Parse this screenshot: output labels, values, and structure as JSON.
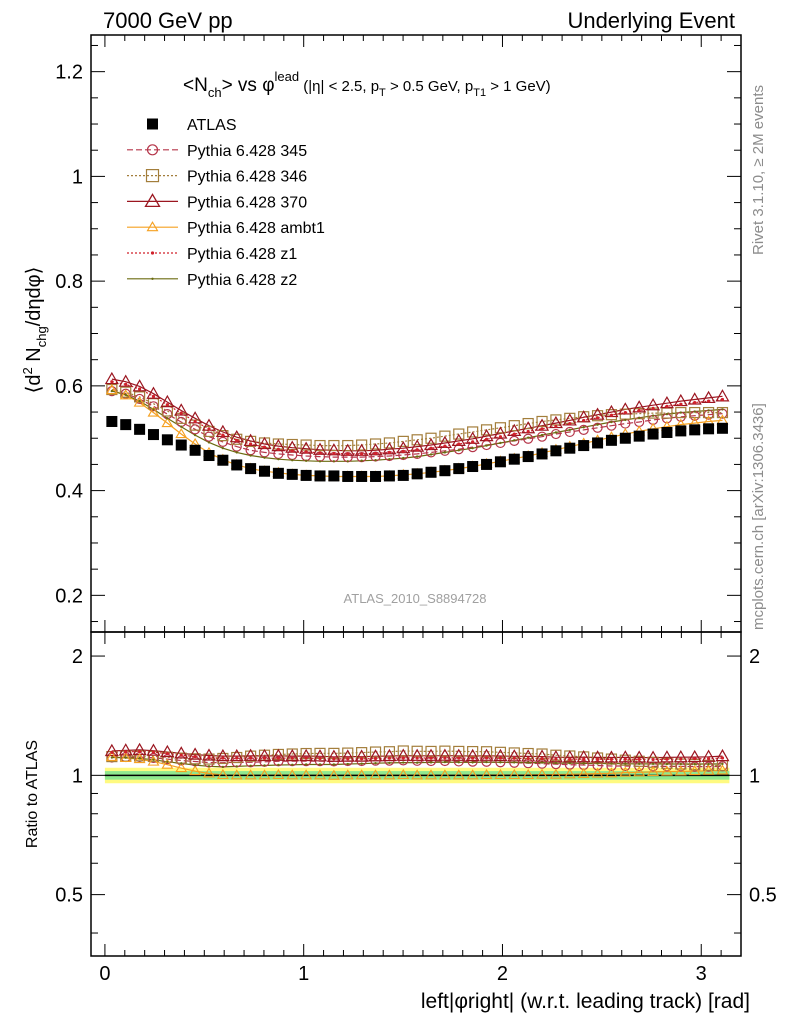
{
  "header": {
    "left": "7000 GeV pp",
    "right": "Underlying Event"
  },
  "side_labels": {
    "top": "Rivet 3.1.10, ≥ 2M events",
    "bottom": "mcplots.cern.ch [arXiv:1306.3436]"
  },
  "watermark": "ATLAS_2010_S8894728",
  "colors": {
    "atlas": "#000000",
    "p345": "#b5364a",
    "p346": "#a37e3b",
    "p370": "#9b1620",
    "ambt1": "#f5a020",
    "z1": "#d0212b",
    "z2": "#6b6b10",
    "band_yellow": "#fffa80",
    "band_green": "#8fe88f"
  },
  "chart_data": {
    "type": "scatter",
    "title_parts": {
      "a": "<N",
      "a_sub": "ch",
      "b": "> vs φ",
      "b_sup": "lead",
      "c": " (|η| < 2.5, p",
      "c_sub": "T",
      "d": " > 0.5 GeV, p",
      "d_sub": "T1",
      "e": " > 1 GeV)"
    },
    "ylabel_main": {
      "a": "⟨d",
      "sup": "2",
      "b": " N",
      "sub": "chg",
      "c": "/dηdφ⟩"
    },
    "ylabel_ratio": "Ratio to ATLAS",
    "xlabel": "left|φright| (w.r.t. leading track) [rad]",
    "xlim": [
      -0.07,
      3.2
    ],
    "ylim_main": [
      0.13,
      1.27
    ],
    "ylim_ratio": [
      0.35,
      2.3
    ],
    "x_ticks": [
      "0",
      "1",
      "2",
      "3"
    ],
    "y_ticks_main": [
      "0.2",
      "0.4",
      "0.6",
      "0.8",
      "1",
      "1.2"
    ],
    "y_ticks_ratio": [
      "0.5",
      "1",
      "2"
    ],
    "legend_position": "top-left",
    "x": [
      0.0349,
      0.1047,
      0.1745,
      0.2443,
      0.3142,
      0.384,
      0.4538,
      0.5236,
      0.5934,
      0.6632,
      0.733,
      0.8029,
      0.8727,
      0.9425,
      1.0123,
      1.0821,
      1.1519,
      1.2217,
      1.2915,
      1.3614,
      1.4312,
      1.501,
      1.5708,
      1.6406,
      1.7104,
      1.7802,
      1.85,
      1.9199,
      1.9897,
      2.0595,
      2.1293,
      2.1991,
      2.2689,
      2.3387,
      2.4086,
      2.4784,
      2.5482,
      2.618,
      2.6878,
      2.7576,
      2.8274,
      2.8972,
      2.9671,
      3.0369,
      3.1067
    ],
    "series": [
      {
        "name": "ATLAS",
        "key": "atlas",
        "marker": "filled-square",
        "line": "none",
        "values": [
          0.532,
          0.526,
          0.517,
          0.507,
          0.497,
          0.487,
          0.477,
          0.467,
          0.458,
          0.449,
          0.442,
          0.437,
          0.433,
          0.431,
          0.429,
          0.428,
          0.428,
          0.427,
          0.427,
          0.427,
          0.428,
          0.429,
          0.432,
          0.435,
          0.438,
          0.442,
          0.446,
          0.45,
          0.455,
          0.46,
          0.465,
          0.47,
          0.476,
          0.481,
          0.486,
          0.491,
          0.496,
          0.5,
          0.504,
          0.508,
          0.511,
          0.514,
          0.516,
          0.518,
          0.519
        ],
        "ratio": [
          1,
          1,
          1,
          1,
          1,
          1,
          1,
          1,
          1,
          1,
          1,
          1,
          1,
          1,
          1,
          1,
          1,
          1,
          1,
          1,
          1,
          1,
          1,
          1,
          1,
          1,
          1,
          1,
          1,
          1,
          1,
          1,
          1,
          1,
          1,
          1,
          1,
          1,
          1,
          1,
          1,
          1,
          1,
          1,
          1
        ]
      },
      {
        "name": "Pythia 6.428 345",
        "key": "p345",
        "marker": "open-circle",
        "line": "dashed",
        "values": [
          0.59,
          0.585,
          0.575,
          0.561,
          0.546,
          0.531,
          0.517,
          0.503,
          0.493,
          0.484,
          0.477,
          0.473,
          0.47,
          0.468,
          0.466,
          0.465,
          0.464,
          0.464,
          0.464,
          0.465,
          0.466,
          0.468,
          0.47,
          0.473,
          0.476,
          0.479,
          0.483,
          0.487,
          0.491,
          0.495,
          0.499,
          0.503,
          0.508,
          0.512,
          0.516,
          0.52,
          0.524,
          0.528,
          0.531,
          0.535,
          0.538,
          0.541,
          0.543,
          0.545,
          0.547
        ],
        "ratio": [
          1.109,
          1.112,
          1.112,
          1.107,
          1.099,
          1.09,
          1.084,
          1.077,
          1.076,
          1.078,
          1.079,
          1.082,
          1.085,
          1.086,
          1.086,
          1.086,
          1.084,
          1.087,
          1.087,
          1.089,
          1.089,
          1.091,
          1.088,
          1.087,
          1.087,
          1.084,
          1.083,
          1.082,
          1.079,
          1.076,
          1.073,
          1.07,
          1.067,
          1.064,
          1.062,
          1.059,
          1.056,
          1.056,
          1.054,
          1.053,
          1.053,
          1.053,
          1.052,
          1.052,
          1.054
        ]
      },
      {
        "name": "Pythia 6.428 346",
        "key": "p346",
        "marker": "open-square",
        "line": "dotted",
        "values": [
          0.593,
          0.588,
          0.579,
          0.566,
          0.552,
          0.538,
          0.525,
          0.513,
          0.505,
          0.498,
          0.494,
          0.491,
          0.489,
          0.488,
          0.487,
          0.486,
          0.486,
          0.486,
          0.487,
          0.489,
          0.491,
          0.494,
          0.497,
          0.5,
          0.504,
          0.508,
          0.512,
          0.516,
          0.52,
          0.524,
          0.528,
          0.532,
          0.535,
          0.538,
          0.541,
          0.543,
          0.545,
          0.546,
          0.547,
          0.548,
          0.548,
          0.549,
          0.549,
          0.549,
          0.549
        ],
        "ratio": [
          1.115,
          1.118,
          1.12,
          1.116,
          1.111,
          1.105,
          1.101,
          1.099,
          1.103,
          1.109,
          1.118,
          1.124,
          1.129,
          1.132,
          1.135,
          1.136,
          1.136,
          1.138,
          1.141,
          1.145,
          1.147,
          1.152,
          1.15,
          1.149,
          1.151,
          1.149,
          1.148,
          1.147,
          1.143,
          1.139,
          1.135,
          1.132,
          1.124,
          1.119,
          1.113,
          1.106,
          1.099,
          1.092,
          1.085,
          1.079,
          1.072,
          1.068,
          1.064,
          1.06,
          1.058
        ]
      },
      {
        "name": "Pythia 6.428 370",
        "key": "p370",
        "marker": "open-triangle",
        "line": "solid",
        "values": [
          0.613,
          0.608,
          0.599,
          0.585,
          0.569,
          0.553,
          0.538,
          0.524,
          0.512,
          0.502,
          0.495,
          0.489,
          0.485,
          0.482,
          0.48,
          0.478,
          0.477,
          0.476,
          0.476,
          0.477,
          0.479,
          0.481,
          0.484,
          0.487,
          0.491,
          0.495,
          0.499,
          0.504,
          0.509,
          0.514,
          0.519,
          0.524,
          0.529,
          0.534,
          0.54,
          0.545,
          0.55,
          0.555,
          0.559,
          0.563,
          0.567,
          0.571,
          0.574,
          0.577,
          0.58
        ],
        "ratio": [
          1.152,
          1.156,
          1.159,
          1.154,
          1.145,
          1.136,
          1.128,
          1.122,
          1.118,
          1.118,
          1.12,
          1.119,
          1.12,
          1.118,
          1.119,
          1.117,
          1.114,
          1.115,
          1.115,
          1.117,
          1.119,
          1.121,
          1.12,
          1.12,
          1.121,
          1.12,
          1.119,
          1.12,
          1.119,
          1.117,
          1.116,
          1.115,
          1.111,
          1.11,
          1.111,
          1.11,
          1.109,
          1.11,
          1.109,
          1.108,
          1.11,
          1.111,
          1.112,
          1.114,
          1.118
        ]
      },
      {
        "name": "Pythia 6.428 ambt1",
        "key": "ambt1",
        "marker": "open-triangle-small",
        "line": "solid",
        "values": [
          0.592,
          0.582,
          0.568,
          0.549,
          0.529,
          0.508,
          0.489,
          0.472,
          0.459,
          0.449,
          0.442,
          0.437,
          0.434,
          0.431,
          0.429,
          0.428,
          0.427,
          0.427,
          0.427,
          0.427,
          0.428,
          0.43,
          0.432,
          0.435,
          0.438,
          0.442,
          0.446,
          0.451,
          0.456,
          0.461,
          0.466,
          0.472,
          0.478,
          0.484,
          0.49,
          0.496,
          0.502,
          0.508,
          0.513,
          0.518,
          0.522,
          0.526,
          0.529,
          0.532,
          0.534
        ],
        "ratio": [
          1.113,
          1.106,
          1.099,
          1.083,
          1.064,
          1.043,
          1.025,
          1.011,
          1.002,
          1,
          1,
          1,
          1.002,
          1,
          1,
          1,
          0.998,
          1,
          1,
          1,
          1,
          1.002,
          1,
          1,
          1,
          1,
          1,
          1.002,
          1.002,
          1.002,
          1.002,
          1.004,
          1.004,
          1.006,
          1.008,
          1.01,
          1.012,
          1.016,
          1.018,
          1.02,
          1.022,
          1.023,
          1.025,
          1.027,
          1.029
        ]
      },
      {
        "name": "Pythia 6.428 z1",
        "key": "z1",
        "marker": "dot",
        "line": "dotted",
        "values": [
          0.608,
          0.603,
          0.594,
          0.58,
          0.564,
          0.548,
          0.532,
          0.518,
          0.506,
          0.496,
          0.489,
          0.483,
          0.479,
          0.476,
          0.474,
          0.472,
          0.471,
          0.47,
          0.47,
          0.471,
          0.473,
          0.475,
          0.478,
          0.481,
          0.485,
          0.489,
          0.493,
          0.498,
          0.503,
          0.508,
          0.513,
          0.518,
          0.523,
          0.528,
          0.534,
          0.539,
          0.544,
          0.549,
          0.553,
          0.557,
          0.561,
          0.565,
          0.568,
          0.571,
          0.574
        ],
        "ratio": [
          1.143,
          1.146,
          1.149,
          1.144,
          1.135,
          1.125,
          1.115,
          1.109,
          1.105,
          1.105,
          1.106,
          1.105,
          1.106,
          1.104,
          1.105,
          1.103,
          1.1,
          1.101,
          1.101,
          1.103,
          1.105,
          1.107,
          1.106,
          1.106,
          1.107,
          1.106,
          1.105,
          1.107,
          1.105,
          1.104,
          1.103,
          1.102,
          1.099,
          1.098,
          1.099,
          1.098,
          1.097,
          1.098,
          1.097,
          1.096,
          1.098,
          1.099,
          1.101,
          1.102,
          1.106
        ]
      },
      {
        "name": "Pythia 6.428 z2",
        "key": "z2",
        "marker": "dot-small",
        "line": "solid",
        "values": [
          0.59,
          0.583,
          0.571,
          0.555,
          0.538,
          0.522,
          0.506,
          0.492,
          0.481,
          0.473,
          0.467,
          0.463,
          0.46,
          0.458,
          0.457,
          0.456,
          0.456,
          0.456,
          0.457,
          0.458,
          0.46,
          0.462,
          0.465,
          0.469,
          0.473,
          0.477,
          0.481,
          0.486,
          0.491,
          0.496,
          0.501,
          0.506,
          0.511,
          0.516,
          0.521,
          0.526,
          0.531,
          0.535,
          0.539,
          0.543,
          0.546,
          0.549,
          0.551,
          0.553,
          0.555
        ],
        "ratio": [
          1.109,
          1.108,
          1.104,
          1.095,
          1.082,
          1.072,
          1.061,
          1.054,
          1.05,
          1.053,
          1.057,
          1.059,
          1.062,
          1.063,
          1.065,
          1.065,
          1.065,
          1.068,
          1.07,
          1.073,
          1.075,
          1.077,
          1.076,
          1.078,
          1.08,
          1.079,
          1.078,
          1.08,
          1.079,
          1.078,
          1.077,
          1.077,
          1.074,
          1.073,
          1.072,
          1.071,
          1.071,
          1.07,
          1.069,
          1.069,
          1.068,
          1.068,
          1.068,
          1.068,
          1.069
        ]
      }
    ],
    "ratio_band": {
      "green_half": 0.025,
      "yellow_half": 0.045
    }
  }
}
